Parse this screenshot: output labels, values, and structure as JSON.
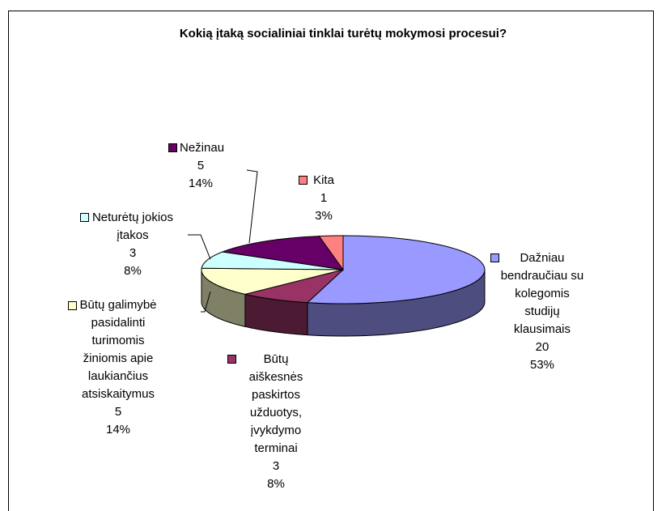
{
  "chart_data": {
    "type": "pie3d",
    "title": "Kokią įtaką socialiniai tinklai turėtų mokymosi procesui?",
    "categories": [
      "Dažniau bendraučiau su kolegomis studijų klausimais",
      "Būtų aiškesnės paskirtos užduotys, įvykdymo terminai",
      "Būtų galimybė pasidalinti turimomis žiniomis apie laukiančius atsiskaitymus",
      "Neturėtų jokios įtakos",
      "Nežinau",
      "Kita"
    ],
    "values": [
      20,
      3,
      5,
      3,
      5,
      1
    ],
    "percentages": [
      53,
      8,
      14,
      8,
      14,
      3
    ],
    "percentage_labels": [
      "53%",
      "8%",
      "14%",
      "8%",
      "14%",
      "3%"
    ],
    "colors": [
      "#9999ff",
      "#993366",
      "#ffffcc",
      "#ccffff",
      "#660066",
      "#ff8080"
    ]
  }
}
